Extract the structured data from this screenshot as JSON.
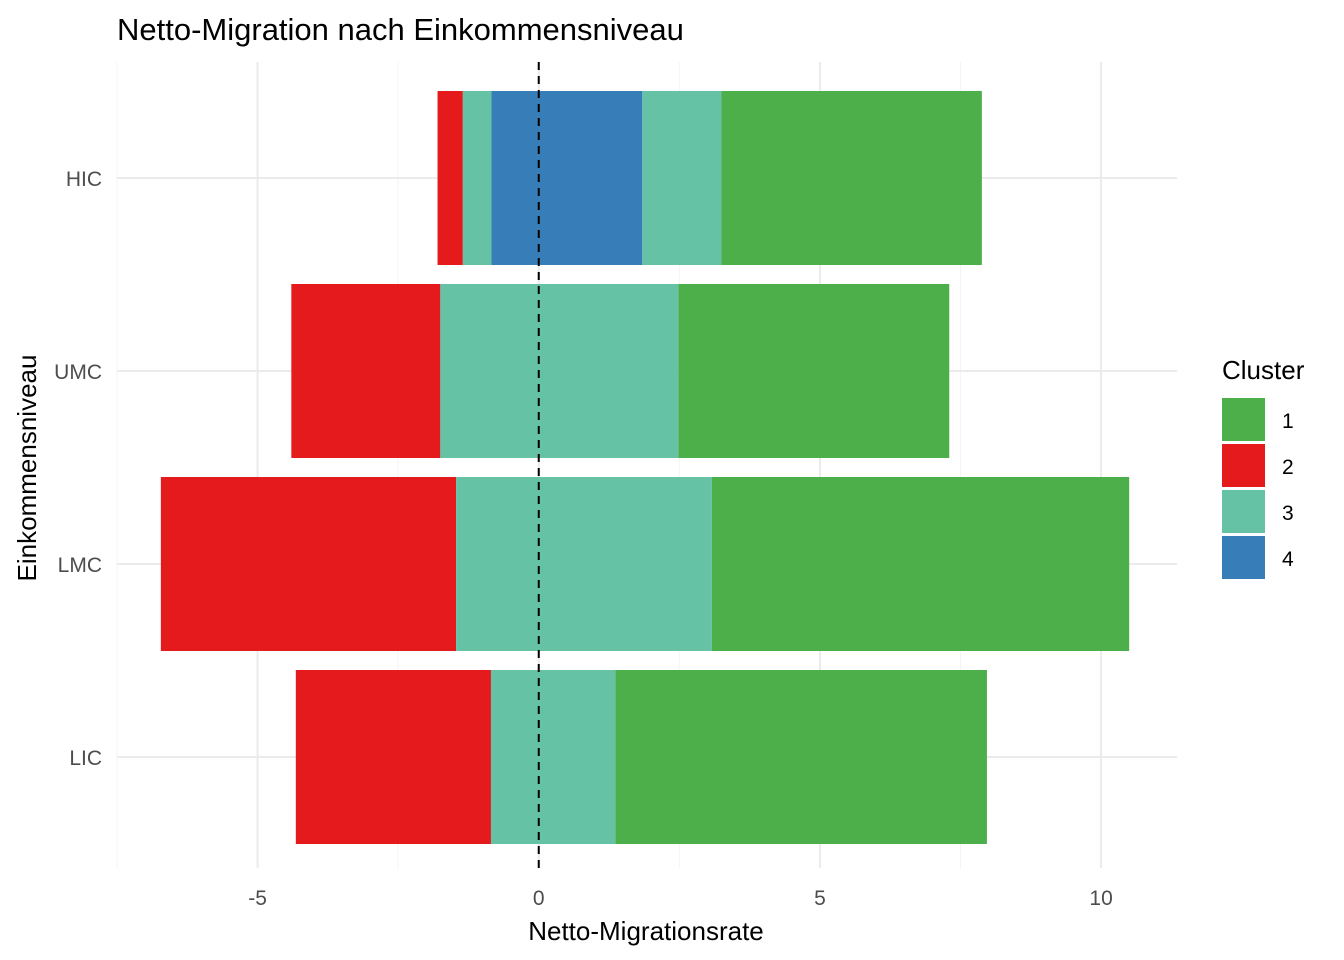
{
  "chart_data": {
    "type": "bar",
    "orientation": "horizontal",
    "stacked": "diverging",
    "title": "Netto-Migration nach Einkommensniveau",
    "xlabel": "Netto-Migrationsrate",
    "ylabel": "Einkommensniveau",
    "xlim": [
      -7.5,
      11.35
    ],
    "x_ticks": [
      -5,
      0,
      5,
      10
    ],
    "x_tick_labels": [
      "-5",
      "0",
      "5",
      "10"
    ],
    "categories": [
      "HIC",
      "UMC",
      "LMC",
      "LIC"
    ],
    "grid": true,
    "reference_line": {
      "x": 0,
      "style": "dashed"
    },
    "legend": {
      "title": "Cluster",
      "position": "right"
    },
    "series_order_positive": [
      "3",
      "1"
    ],
    "series": [
      {
        "name": "1",
        "color": "#4DAF4A",
        "segments": {
          "HIC": [
            3.25,
            7.88
          ],
          "UMC": [
            2.48,
            7.3
          ],
          "LMC": [
            3.08,
            10.5
          ],
          "LIC": [
            1.36,
            7.97
          ]
        }
      },
      {
        "name": "2",
        "color": "#E41A1C",
        "segments": {
          "HIC": [
            -1.8,
            -1.35
          ],
          "UMC": [
            -4.4,
            -1.75
          ],
          "LMC": [
            -6.72,
            -1.47
          ],
          "LIC": [
            -4.32,
            -0.85
          ]
        }
      },
      {
        "name": "3",
        "color": "#66C2A5",
        "segments": {
          "HIC": [
            -1.35,
            -0.84
          ],
          "UMC": [
            -1.75,
            2.48
          ],
          "LMC": [
            -1.47,
            3.08
          ],
          "LIC": [
            -0.85,
            1.36
          ]
        }
      },
      {
        "name": "3",
        "color": "#66C2A5",
        "segments": {
          "HIC": [
            1.84,
            3.25
          ]
        }
      },
      {
        "name": "4",
        "color": "#377EB8",
        "segments": {
          "HIC": [
            -0.84,
            1.84
          ]
        }
      }
    ],
    "legend_entries": [
      {
        "label": "1",
        "color": "#4DAF4A"
      },
      {
        "label": "2",
        "color": "#E41A1C"
      },
      {
        "label": "3",
        "color": "#66C2A5"
      },
      {
        "label": "4",
        "color": "#377EB8"
      }
    ]
  }
}
